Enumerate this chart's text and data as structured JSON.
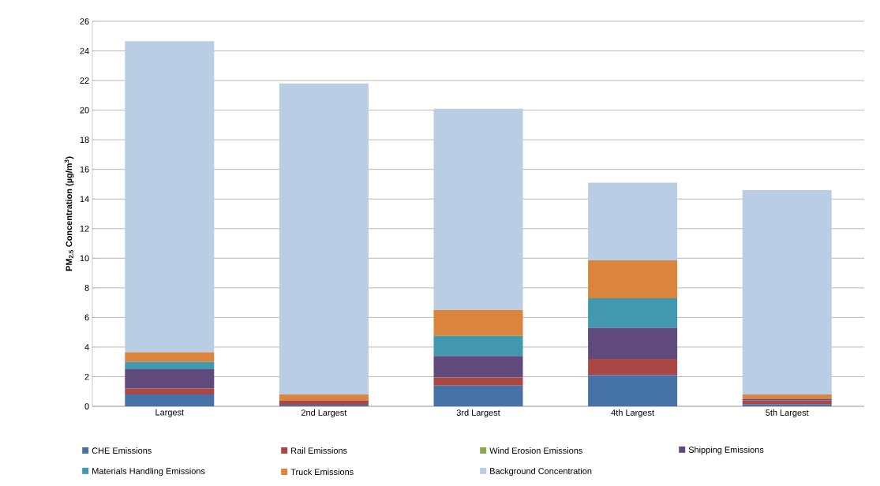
{
  "chart_data": {
    "type": "bar",
    "stacked": true,
    "ylabel": "PM$_{2.5}$ Concentration (µg/m$^{3}$)",
    "categories": [
      "Largest",
      "2nd Largest",
      "3rd Largest",
      "4th Largest",
      "5th Largest"
    ],
    "series": [
      {
        "name": "CHE Emissions",
        "color": "#4572a7",
        "values": [
          0.8,
          0.1,
          1.4,
          2.1,
          0.15
        ]
      },
      {
        "name": "Rail Emissions",
        "color": "#aa4643",
        "values": [
          0.4,
          0.3,
          0.55,
          1.1,
          0.25
        ]
      },
      {
        "name": "Wind Erosion Emissions",
        "color": "#89a54e",
        "values": [
          0,
          0,
          0,
          0,
          0
        ]
      },
      {
        "name": "Shipping Emissions",
        "color": "#604a7b",
        "values": [
          1.3,
          0,
          1.45,
          2.1,
          0.1
        ]
      },
      {
        "name": "Materials Handling Emissions",
        "color": "#4198af",
        "values": [
          0.5,
          0,
          1.35,
          2.0,
          0
        ]
      },
      {
        "name": "Truck Emissions",
        "color": "#db843d",
        "values": [
          0.65,
          0.4,
          1.75,
          2.55,
          0.3
        ]
      },
      {
        "name": "Background Concentration",
        "color": "#b9cde5",
        "values": [
          21.0,
          21.0,
          13.6,
          5.25,
          13.8
        ]
      }
    ],
    "ylim": [
      0,
      26
    ],
    "yticks": [
      0,
      2,
      4,
      6,
      8,
      10,
      12,
      14,
      16,
      18,
      20,
      22,
      24,
      26
    ],
    "grid": "y",
    "legend": "bottom"
  }
}
